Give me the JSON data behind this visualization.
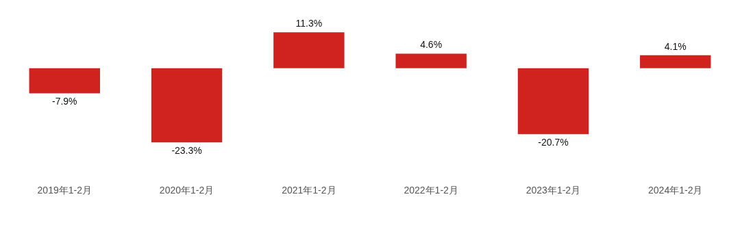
{
  "chart_data": {
    "type": "bar",
    "categories": [
      "2019年1-2月",
      "2020年1-2月",
      "2021年1-2月",
      "2022年1-2月",
      "2023年1-2月",
      "2024年1-2月"
    ],
    "values": [
      -7.9,
      -23.3,
      11.3,
      4.6,
      -20.7,
      4.1
    ],
    "value_labels": [
      "-7.9%",
      "-23.3%",
      "11.3%",
      "4.6%",
      "-20.7%",
      "4.1%"
    ],
    "color": "#d0231f",
    "grid": false,
    "legend": false,
    "tick_labels": "x"
  }
}
